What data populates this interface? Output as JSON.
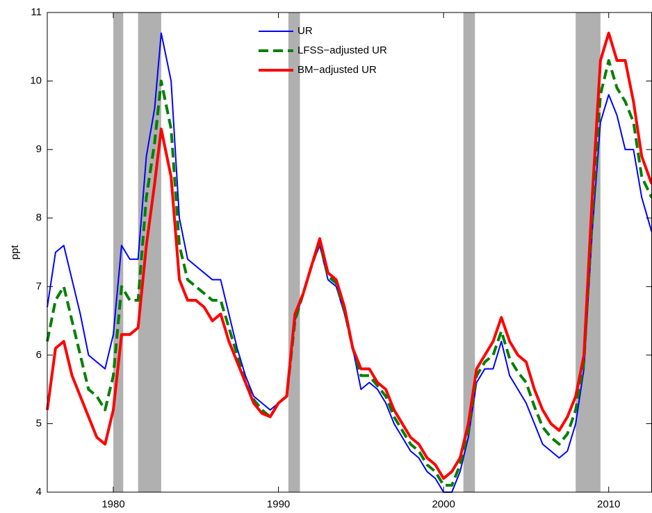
{
  "chart_data": {
    "type": "line",
    "y_label": "ppt",
    "xlim": [
      1976,
      2012.6
    ],
    "ylim": [
      4,
      11
    ],
    "xticks": [
      1980,
      1990,
      2000,
      2010
    ],
    "yticks": [
      4,
      5,
      6,
      7,
      8,
      9,
      10,
      11
    ],
    "shaded_periods": [
      [
        1980.0,
        1980.6
      ],
      [
        1981.5,
        1982.9
      ],
      [
        1990.6,
        1991.3
      ],
      [
        2001.2,
        2001.9
      ],
      [
        2008.0,
        2009.5
      ]
    ],
    "shade_color": "#b0b0b0",
    "legend": "top-center",
    "x": [
      1976,
      1976.5,
      1977,
      1977.5,
      1978,
      1978.5,
      1979,
      1979.5,
      1980,
      1980.5,
      1981,
      1981.5,
      1982,
      1982.5,
      1982.9,
      1983.5,
      1984,
      1984.5,
      1985,
      1985.5,
      1986,
      1986.5,
      1987,
      1987.5,
      1988,
      1988.5,
      1989,
      1989.5,
      1990,
      1990.5,
      1991,
      1991.5,
      1992,
      1992.5,
      1993,
      1993.5,
      1994,
      1994.5,
      1995,
      1995.5,
      1996,
      1996.5,
      1997,
      1997.5,
      1998,
      1998.5,
      1999,
      1999.5,
      2000,
      2000.5,
      2001,
      2001.5,
      2002,
      2002.5,
      2003,
      2003.5,
      2004,
      2004.5,
      2005,
      2005.5,
      2006,
      2006.5,
      2007,
      2007.5,
      2008,
      2008.5,
      2009,
      2009.5,
      2010,
      2010.5,
      2011,
      2011.5,
      2012,
      2012.6
    ],
    "series": [
      {
        "name": "UR",
        "color": "#0000ff",
        "width": 2,
        "dash": "none",
        "values": [
          6.7,
          7.5,
          7.6,
          7.1,
          6.6,
          6.0,
          5.9,
          5.8,
          6.3,
          7.6,
          7.4,
          7.4,
          8.9,
          9.6,
          10.7,
          10.0,
          8.0,
          7.4,
          7.3,
          7.2,
          7.1,
          7.1,
          6.6,
          6.1,
          5.7,
          5.4,
          5.3,
          5.2,
          5.3,
          5.4,
          6.5,
          6.9,
          7.3,
          7.6,
          7.1,
          7.0,
          6.6,
          6.1,
          5.5,
          5.6,
          5.5,
          5.3,
          5.0,
          4.8,
          4.6,
          4.5,
          4.3,
          4.2,
          4.0,
          4.0,
          4.3,
          4.8,
          5.6,
          5.8,
          5.8,
          6.2,
          5.7,
          5.5,
          5.3,
          5.0,
          4.7,
          4.6,
          4.5,
          4.6,
          5.0,
          5.8,
          7.8,
          9.4,
          9.8,
          9.5,
          9.0,
          9.0,
          8.3,
          7.8
        ]
      },
      {
        "name": "LFSS−adjusted UR",
        "color": "#008000",
        "width": 4,
        "dash": "14 7",
        "values": [
          6.2,
          6.8,
          7.0,
          6.5,
          6.0,
          5.5,
          5.4,
          5.2,
          5.7,
          7.0,
          6.8,
          6.8,
          8.3,
          9.1,
          10.0,
          9.3,
          7.6,
          7.1,
          7.0,
          6.9,
          6.8,
          6.8,
          6.4,
          6.0,
          5.6,
          5.35,
          5.2,
          5.1,
          5.3,
          5.4,
          6.5,
          6.9,
          7.3,
          7.65,
          7.15,
          7.05,
          6.65,
          6.1,
          5.7,
          5.7,
          5.55,
          5.4,
          5.1,
          4.9,
          4.7,
          4.6,
          4.4,
          4.3,
          4.1,
          4.1,
          4.4,
          4.9,
          5.7,
          5.9,
          6.0,
          6.35,
          5.95,
          5.75,
          5.6,
          5.25,
          4.95,
          4.8,
          4.7,
          4.85,
          5.2,
          5.9,
          8.0,
          9.8,
          10.3,
          9.9,
          9.7,
          9.4,
          8.6,
          8.3
        ]
      },
      {
        "name": "BM−adjusted UR",
        "color": "#ff0000",
        "width": 4,
        "dash": "none",
        "values": [
          5.2,
          6.1,
          6.2,
          5.7,
          5.4,
          5.1,
          4.8,
          4.7,
          5.2,
          6.3,
          6.3,
          6.4,
          7.6,
          8.5,
          9.3,
          8.6,
          7.1,
          6.8,
          6.8,
          6.7,
          6.5,
          6.6,
          6.2,
          5.9,
          5.6,
          5.3,
          5.15,
          5.1,
          5.3,
          5.4,
          6.6,
          6.9,
          7.3,
          7.7,
          7.2,
          7.1,
          6.7,
          6.1,
          5.8,
          5.8,
          5.6,
          5.5,
          5.2,
          5.0,
          4.8,
          4.7,
          4.5,
          4.4,
          4.2,
          4.3,
          4.5,
          5.0,
          5.8,
          6.0,
          6.2,
          6.55,
          6.2,
          6.0,
          5.9,
          5.5,
          5.2,
          5.0,
          4.9,
          5.1,
          5.4,
          6.0,
          8.3,
          10.3,
          10.7,
          10.3,
          10.3,
          9.7,
          8.9,
          8.5
        ]
      }
    ]
  }
}
